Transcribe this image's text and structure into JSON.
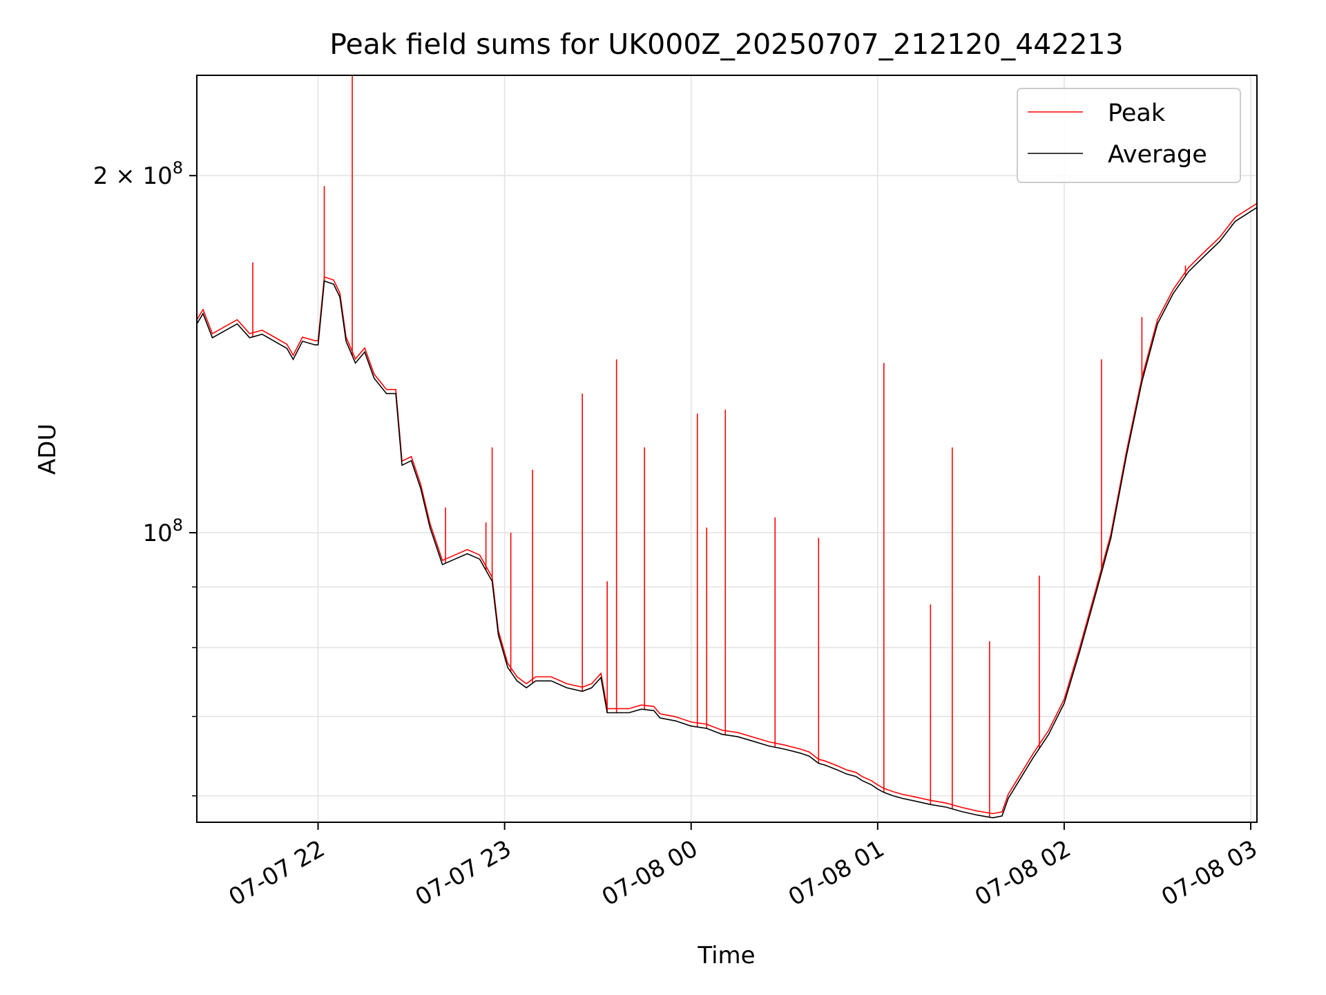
{
  "chart_data": {
    "type": "line",
    "title": "Peak field sums for UK000Z_20250707_212120_442213",
    "xlabel": "Time",
    "ylabel": "ADU",
    "y_scale": "log",
    "ylim": [
      57000000,
      243000000
    ],
    "xlim": [
      "2025-07-07 21:21",
      "2025-07-08 03:02"
    ],
    "grid": true,
    "legend_position": "top-right",
    "x_ticks": [
      {
        "time": "2025-07-07 22:00",
        "label": "07-07 22"
      },
      {
        "time": "2025-07-07 23:00",
        "label": "07-07 23"
      },
      {
        "time": "2025-07-08 00:00",
        "label": "07-08 00"
      },
      {
        "time": "2025-07-08 01:00",
        "label": "07-08 01"
      },
      {
        "time": "2025-07-08 02:00",
        "label": "07-08 02"
      },
      {
        "time": "2025-07-08 03:00",
        "label": "07-08 03"
      }
    ],
    "y_ticks_major": [
      {
        "value": 100000000,
        "base": "10",
        "exp": "8",
        "coef": ""
      },
      {
        "value": 200000000,
        "base": "10",
        "exp": "8",
        "coef": "2 × "
      }
    ],
    "y_ticks_minor": [
      60000000,
      70000000,
      80000000,
      90000000
    ],
    "series": [
      {
        "name": "Average",
        "color": "#000000",
        "points": [
          [
            "2025-07-07 21:21",
            150000000
          ],
          [
            "2025-07-07 21:23",
            153000000
          ],
          [
            "2025-07-07 21:26",
            146000000
          ],
          [
            "2025-07-07 21:30",
            148000000
          ],
          [
            "2025-07-07 21:34",
            150000000
          ],
          [
            "2025-07-07 21:38",
            146000000
          ],
          [
            "2025-07-07 21:42",
            147000000
          ],
          [
            "2025-07-07 21:46",
            145000000
          ],
          [
            "2025-07-07 21:50",
            143000000
          ],
          [
            "2025-07-07 21:52",
            140000000
          ],
          [
            "2025-07-07 21:55",
            145000000
          ],
          [
            "2025-07-07 21:59",
            144000000
          ],
          [
            "2025-07-07 22:00",
            144000000
          ],
          [
            "2025-07-07 22:02",
            163000000
          ],
          [
            "2025-07-07 22:05",
            162000000
          ],
          [
            "2025-07-07 22:07",
            158000000
          ],
          [
            "2025-07-07 22:09",
            145000000
          ],
          [
            "2025-07-07 22:12",
            139000000
          ],
          [
            "2025-07-07 22:15",
            142000000
          ],
          [
            "2025-07-07 22:18",
            135000000
          ],
          [
            "2025-07-07 22:22",
            131000000
          ],
          [
            "2025-07-07 22:25",
            131000000
          ],
          [
            "2025-07-07 22:27",
            114000000
          ],
          [
            "2025-07-07 22:30",
            115000000
          ],
          [
            "2025-07-07 22:33",
            109000000
          ],
          [
            "2025-07-07 22:36",
            101000000
          ],
          [
            "2025-07-07 22:40",
            94000000
          ],
          [
            "2025-07-07 22:44",
            95000000
          ],
          [
            "2025-07-07 22:48",
            96000000
          ],
          [
            "2025-07-07 22:52",
            95000000
          ],
          [
            "2025-07-07 22:56",
            91000000
          ],
          [
            "2025-07-07 22:58",
            82000000
          ],
          [
            "2025-07-07 23:01",
            77000000
          ],
          [
            "2025-07-07 23:04",
            75000000
          ],
          [
            "2025-07-07 23:07",
            74000000
          ],
          [
            "2025-07-07 23:10",
            75000000
          ],
          [
            "2025-07-07 23:15",
            75000000
          ],
          [
            "2025-07-07 23:20",
            74000000
          ],
          [
            "2025-07-07 23:25",
            73500000
          ],
          [
            "2025-07-07 23:28",
            74000000
          ],
          [
            "2025-07-07 23:31",
            75500000
          ],
          [
            "2025-07-07 23:33",
            70500000
          ],
          [
            "2025-07-07 23:36",
            70500000
          ],
          [
            "2025-07-07 23:40",
            70500000
          ],
          [
            "2025-07-07 23:44",
            71000000
          ],
          [
            "2025-07-07 23:48",
            70800000
          ],
          [
            "2025-07-07 23:50",
            69800000
          ],
          [
            "2025-07-07 23:55",
            69400000
          ],
          [
            "2025-07-08 00:00",
            68700000
          ],
          [
            "2025-07-08 00:05",
            68400000
          ],
          [
            "2025-07-08 00:10",
            67600000
          ],
          [
            "2025-07-08 00:15",
            67300000
          ],
          [
            "2025-07-08 00:20",
            66700000
          ],
          [
            "2025-07-08 00:25",
            66100000
          ],
          [
            "2025-07-08 00:30",
            65700000
          ],
          [
            "2025-07-08 00:35",
            65200000
          ],
          [
            "2025-07-08 00:38",
            64800000
          ],
          [
            "2025-07-08 00:41",
            63900000
          ],
          [
            "2025-07-08 00:43",
            63700000
          ],
          [
            "2025-07-08 00:47",
            63100000
          ],
          [
            "2025-07-08 00:50",
            62600000
          ],
          [
            "2025-07-08 00:53",
            62300000
          ],
          [
            "2025-07-08 00:55",
            61800000
          ],
          [
            "2025-07-08 00:58",
            61300000
          ],
          [
            "2025-07-08 01:00",
            60800000
          ],
          [
            "2025-07-08 01:02",
            60400000
          ],
          [
            "2025-07-08 01:05",
            60000000
          ],
          [
            "2025-07-08 01:08",
            59700000
          ],
          [
            "2025-07-08 01:12",
            59400000
          ],
          [
            "2025-07-08 01:17",
            59000000
          ],
          [
            "2025-07-08 01:22",
            58700000
          ],
          [
            "2025-07-08 01:27",
            58200000
          ],
          [
            "2025-07-08 01:32",
            57800000
          ],
          [
            "2025-07-08 01:37",
            57500000
          ],
          [
            "2025-07-08 01:40",
            57700000
          ],
          [
            "2025-07-08 01:42",
            59700000
          ],
          [
            "2025-07-08 01:45",
            61500000
          ],
          [
            "2025-07-08 01:50",
            64600000
          ],
          [
            "2025-07-08 01:55",
            67600000
          ],
          [
            "2025-07-08 02:00",
            71800000
          ],
          [
            "2025-07-08 02:05",
            79400000
          ],
          [
            "2025-07-08 02:10",
            88500000
          ],
          [
            "2025-07-08 02:15",
            98900000
          ],
          [
            "2025-07-08 02:20",
            116000000
          ],
          [
            "2025-07-08 02:25",
            134000000
          ],
          [
            "2025-07-08 02:30",
            150000000
          ],
          [
            "2025-07-08 02:35",
            159000000
          ],
          [
            "2025-07-08 02:40",
            166000000
          ],
          [
            "2025-07-08 02:45",
            171000000
          ],
          [
            "2025-07-08 02:50",
            176000000
          ],
          [
            "2025-07-08 02:55",
            183000000
          ],
          [
            "2025-07-08 03:02",
            188000000
          ]
        ]
      },
      {
        "name": "Peak",
        "color": "#ff0000",
        "spikes": [
          [
            "2025-07-07 21:39",
            169000000
          ],
          [
            "2025-07-07 22:02",
            196000000
          ],
          [
            "2025-07-07 22:11",
            243000000
          ],
          [
            "2025-07-07 22:41",
            105000000
          ],
          [
            "2025-07-07 22:54",
            102000000
          ],
          [
            "2025-07-07 22:56",
            118000000
          ],
          [
            "2025-07-07 23:02",
            100000000
          ],
          [
            "2025-07-07 23:09",
            113000000
          ],
          [
            "2025-07-07 23:25",
            131000000
          ],
          [
            "2025-07-07 23:33",
            91000000
          ],
          [
            "2025-07-07 23:36",
            140000000
          ],
          [
            "2025-07-07 23:45",
            118000000
          ],
          [
            "2025-07-08 00:02",
            126000000
          ],
          [
            "2025-07-08 00:05",
            101000000
          ],
          [
            "2025-07-08 00:11",
            127000000
          ],
          [
            "2025-07-08 00:27",
            103000000
          ],
          [
            "2025-07-08 00:41",
            99000000
          ],
          [
            "2025-07-08 01:02",
            139000000
          ],
          [
            "2025-07-08 01:17",
            87000000
          ],
          [
            "2025-07-08 01:24",
            118000000
          ],
          [
            "2025-07-08 01:36",
            81000000
          ],
          [
            "2025-07-08 01:52",
            92000000
          ],
          [
            "2025-07-08 02:12",
            140000000
          ],
          [
            "2025-07-08 02:25",
            152000000
          ],
          [
            "2025-07-08 02:39",
            168000000
          ],
          [
            "2025-07-08 02:54",
            182000000
          ]
        ]
      }
    ]
  }
}
